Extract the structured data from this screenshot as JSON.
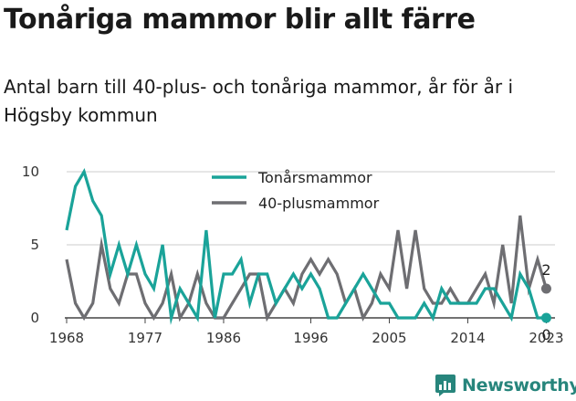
{
  "title": "Tonåriga mammor blir allt färre",
  "subtitle": "Antal barn till 40-plus- och tonåriga mammor, år för år i Högsby kommun",
  "brand": "Newsworthy",
  "colors": {
    "teal": "#1aa399",
    "gray": "#6e6e72",
    "axis": "#444444",
    "grid": "#cccccc"
  },
  "chart_data": {
    "type": "line",
    "x": [
      1968,
      1969,
      1970,
      1971,
      1972,
      1973,
      1974,
      1975,
      1976,
      1977,
      1978,
      1979,
      1980,
      1981,
      1982,
      1983,
      1984,
      1985,
      1986,
      1987,
      1988,
      1989,
      1990,
      1991,
      1992,
      1993,
      1994,
      1995,
      1996,
      1997,
      1998,
      1999,
      2000,
      2001,
      2002,
      2003,
      2004,
      2005,
      2006,
      2007,
      2008,
      2009,
      2010,
      2011,
      2012,
      2013,
      2014,
      2015,
      2016,
      2017,
      2018,
      2019,
      2020,
      2021,
      2022,
      2023
    ],
    "xticks": [
      1968,
      1977,
      1986,
      1996,
      2005,
      2014,
      2023
    ],
    "xtick_labels": [
      "1968",
      "1977",
      "1986",
      "1996",
      "2005",
      "2014",
      "2023"
    ],
    "yticks": [
      0,
      5,
      10
    ],
    "ylim": [
      0,
      10.5
    ],
    "xlim": [
      1968,
      2024
    ],
    "series": [
      {
        "name": "Tonårsmammor",
        "color": "#1aa399",
        "values": [
          6,
          9,
          10,
          8,
          7,
          3,
          5,
          3,
          5,
          3,
          2,
          5,
          0,
          2,
          1,
          0,
          6,
          0,
          3,
          3,
          4,
          1,
          3,
          3,
          1,
          2,
          3,
          2,
          3,
          2,
          0,
          0,
          1,
          2,
          3,
          2,
          1,
          1,
          0,
          0,
          0,
          1,
          0,
          2,
          1,
          1,
          1,
          1,
          2,
          2,
          1,
          0,
          3,
          2,
          0,
          0
        ],
        "end_label": "0"
      },
      {
        "name": "40-plusmammor",
        "color": "#6e6e72",
        "values": [
          4,
          1,
          0,
          1,
          5,
          2,
          1,
          3,
          3,
          1,
          0,
          1,
          3,
          0,
          1,
          3,
          1,
          0,
          0,
          1,
          2,
          3,
          3,
          0,
          1,
          2,
          1,
          3,
          4,
          3,
          4,
          3,
          1,
          2,
          0,
          1,
          3,
          2,
          6,
          2,
          6,
          2,
          1,
          1,
          2,
          1,
          1,
          2,
          3,
          1,
          5,
          1,
          7,
          2,
          4,
          2
        ],
        "end_label": "2"
      }
    ]
  }
}
